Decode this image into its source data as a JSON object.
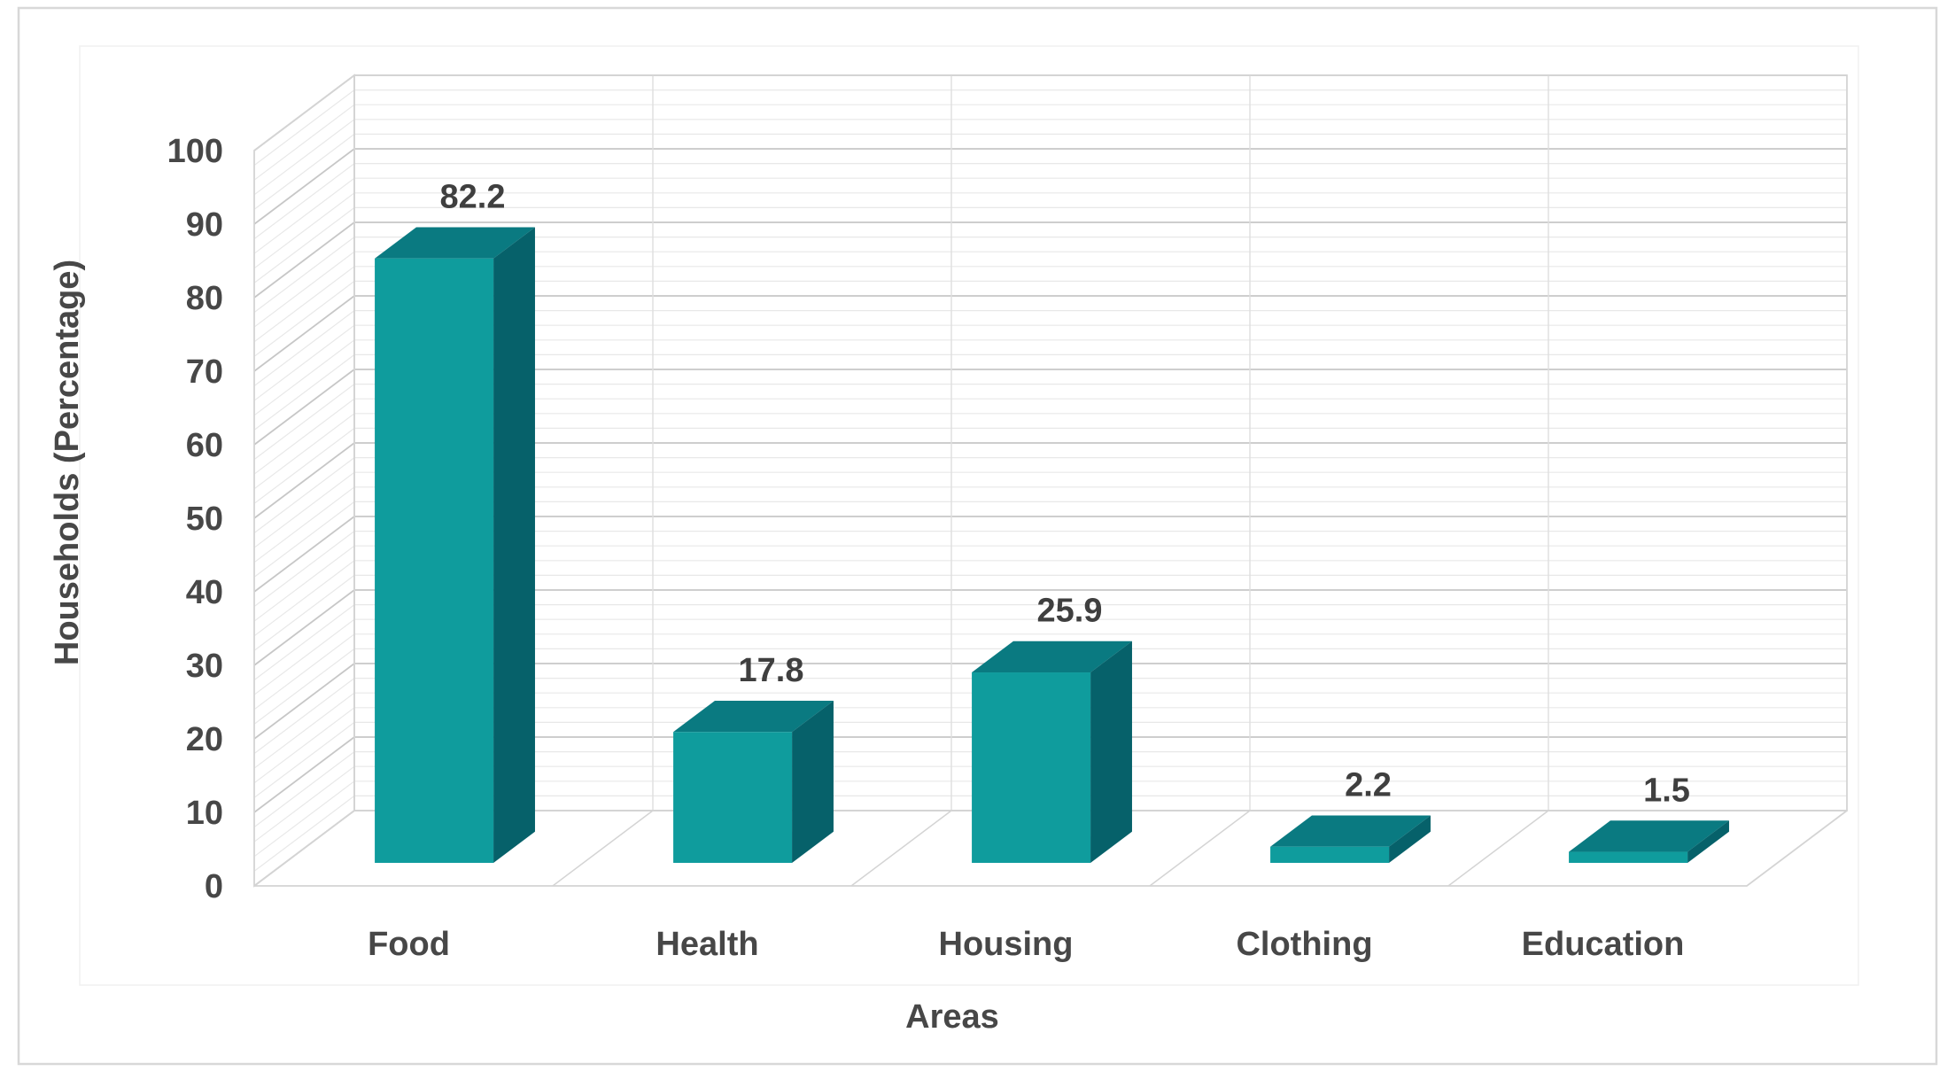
{
  "chart_data": {
    "type": "bar",
    "variant": "3d-column",
    "title": "",
    "categories": [
      "Food",
      "Health",
      "Housing",
      "Clothing",
      "Education"
    ],
    "values": [
      82.2,
      17.8,
      25.9,
      2.2,
      1.5
    ],
    "data_labels": [
      "82.2",
      "17.8",
      "25.9",
      "2.2",
      "1.5"
    ],
    "xlabel": "Areas",
    "ylabel": "Households (Percentage)",
    "ylim": [
      0,
      100
    ],
    "y_major_unit": 10,
    "y_minor_unit": 2,
    "y_tick_labels": [
      "0",
      "10",
      "20",
      "30",
      "40",
      "50",
      "60",
      "70",
      "80",
      "90",
      "100"
    ],
    "grid": "on",
    "legend": "none",
    "colors": {
      "bar_front": "#0F9C9D",
      "bar_top": "#0A7A81",
      "bar_side": "#06616A",
      "grid_major": "#C7C7C7",
      "grid_minor": "#E8E8E8",
      "wall_edge": "#D4D4D4",
      "wall_separator": "#DEDEDE",
      "plot_border": "#F1F1F1",
      "chart_border": "#D8D8D8",
      "text": "#474747",
      "data_label_text": "#3F3F3F",
      "background": "#FFFFFF"
    }
  }
}
